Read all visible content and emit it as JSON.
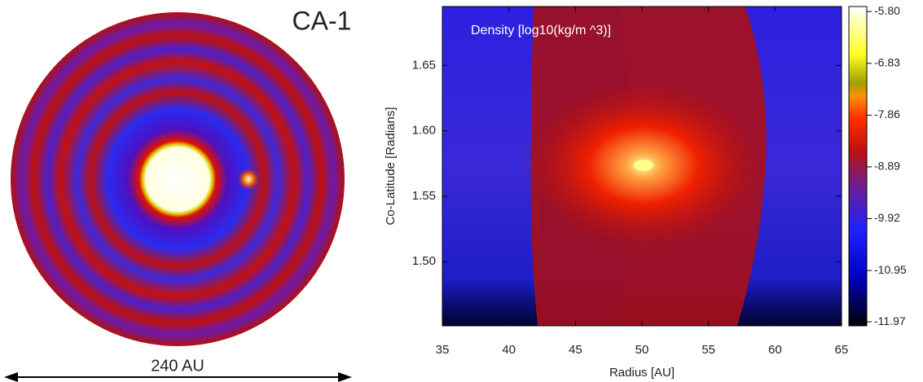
{
  "chart_data": [
    {
      "type": "image",
      "title": "CA-1",
      "annotation": "240 AU"
    },
    {
      "type": "heatmap",
      "title": "Density [log10(kg/m ^3)]",
      "x_label": "Radius [AU]",
      "y_label": "Co-Latitude [Radians]",
      "xlim": [
        35,
        65
      ],
      "xticks": [
        35,
        40,
        45,
        50,
        55,
        60,
        65
      ],
      "ylim": [
        1.451,
        1.695
      ],
      "yticks": [
        {
          "value": 1.5,
          "label": "1.50"
        },
        {
          "value": 1.55,
          "label": "1.55"
        },
        {
          "value": 1.6,
          "label": "1.60"
        },
        {
          "value": 1.65,
          "label": "1.65"
        }
      ],
      "colorbar": {
        "lim": [
          -12.05,
          -5.7
        ],
        "ticks": [
          {
            "value": -5.8,
            "label": "-5.80"
          },
          {
            "value": -6.83,
            "label": "-6.83"
          },
          {
            "value": -7.86,
            "label": "-7.86"
          },
          {
            "value": -8.89,
            "label": "-8.89"
          },
          {
            "value": -9.92,
            "label": "-9.92"
          },
          {
            "value": -10.95,
            "label": "-10.95"
          },
          {
            "value": -11.97,
            "label": "-11.97"
          }
        ]
      }
    }
  ]
}
